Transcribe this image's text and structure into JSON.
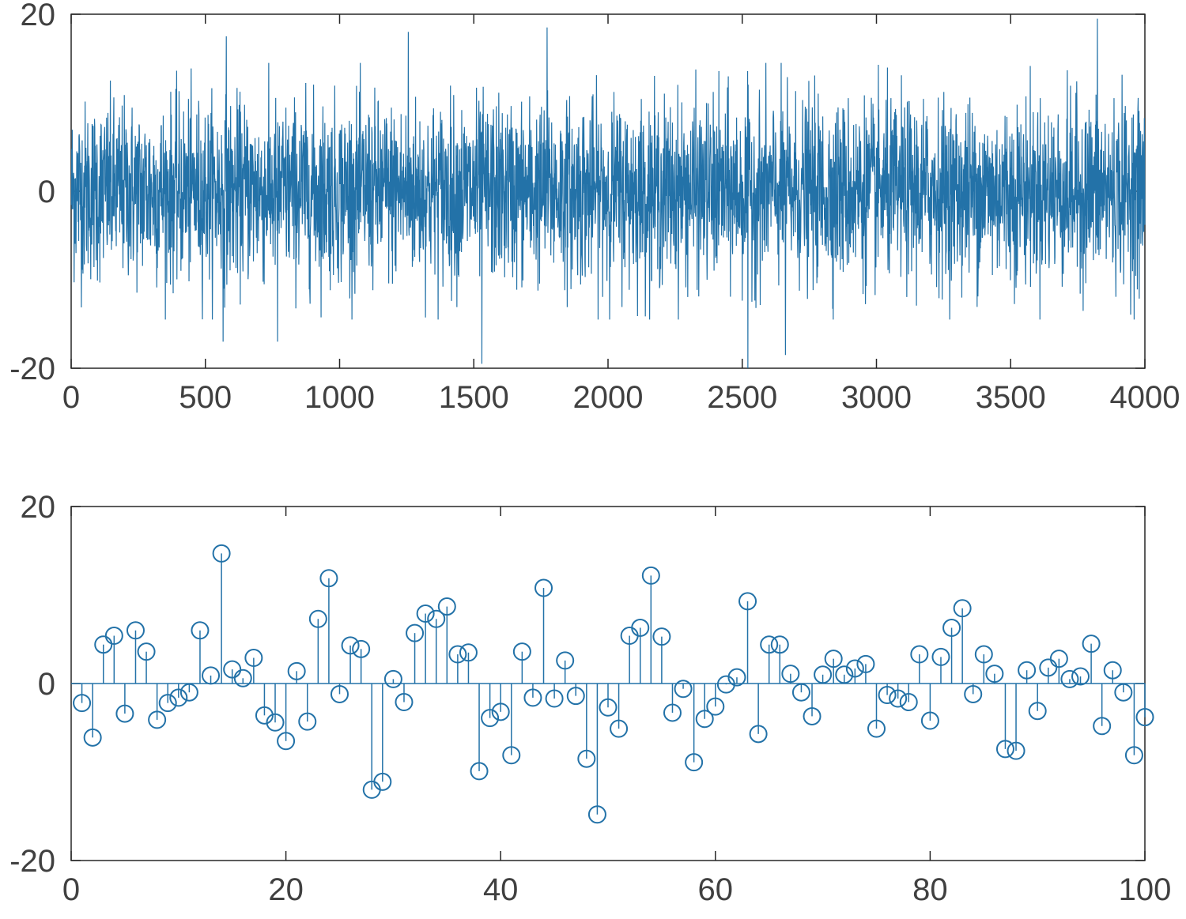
{
  "chart_data": [
    {
      "type": "line",
      "color": "#2372a8",
      "xlim": [
        0,
        4000
      ],
      "ylim": [
        -20,
        20
      ],
      "xticks": [
        0,
        500,
        1000,
        1500,
        2000,
        2500,
        3000,
        3500,
        4000
      ],
      "yticks": [
        -20,
        0,
        20
      ],
      "xtick_labels": [
        "0",
        "500",
        "1000",
        "1500",
        "2000",
        "2500",
        "3000",
        "3500",
        "4000"
      ],
      "ytick_labels": [
        "-20",
        "0",
        "20"
      ],
      "grid": false,
      "series_length": 4000,
      "noise_std": 5,
      "notable_points": [
        {
          "x": 577,
          "y": 17.5
        },
        {
          "x": 1255,
          "y": 18
        },
        {
          "x": 1772,
          "y": 18.5
        },
        {
          "x": 3822,
          "y": 19.5
        },
        {
          "x": 1529,
          "y": -19.5
        },
        {
          "x": 2520,
          "y": -20
        },
        {
          "x": 2660,
          "y": -18.5
        },
        {
          "x": 768,
          "y": -17
        },
        {
          "x": 565,
          "y": -17
        }
      ]
    },
    {
      "type": "stem",
      "color": "#2372a8",
      "xlim": [
        0,
        100
      ],
      "ylim": [
        -20,
        20
      ],
      "xticks": [
        0,
        20,
        40,
        60,
        80,
        100
      ],
      "yticks": [
        -20,
        0,
        20
      ],
      "xtick_labels": [
        "0",
        "20",
        "40",
        "60",
        "80",
        "100"
      ],
      "ytick_labels": [
        "-20",
        "0",
        "20"
      ],
      "grid": false,
      "x": [
        1,
        2,
        3,
        4,
        5,
        6,
        7,
        8,
        9,
        10,
        11,
        12,
        13,
        14,
        15,
        16,
        17,
        18,
        19,
        20,
        21,
        22,
        23,
        24,
        25,
        26,
        27,
        28,
        29,
        30,
        31,
        32,
        33,
        34,
        35,
        36,
        37,
        38,
        39,
        40,
        41,
        42,
        43,
        44,
        45,
        46,
        47,
        48,
        49,
        50,
        51,
        52,
        53,
        54,
        55,
        56,
        57,
        58,
        59,
        60,
        61,
        62,
        63,
        64,
        65,
        66,
        67,
        68,
        69,
        70,
        71,
        72,
        73,
        74,
        75,
        76,
        77,
        78,
        79,
        80,
        81,
        82,
        83,
        84,
        85,
        86,
        87,
        88,
        89,
        90,
        91,
        92,
        93,
        94,
        95,
        96,
        97,
        98,
        99,
        100
      ],
      "values": [
        -2.2,
        -6.1,
        4.4,
        5.4,
        -3.4,
        6.0,
        3.6,
        -4.1,
        -2.2,
        -1.6,
        -1.0,
        6.0,
        0.9,
        14.7,
        1.6,
        0.6,
        2.9,
        -3.6,
        -4.4,
        -6.5,
        1.4,
        -4.3,
        7.3,
        11.9,
        -1.2,
        4.3,
        3.9,
        -12.0,
        -11.1,
        0.5,
        -2.1,
        5.7,
        7.9,
        7.3,
        8.7,
        3.3,
        3.5,
        -9.9,
        -3.9,
        -3.2,
        -8.1,
        3.6,
        -1.6,
        10.8,
        -1.7,
        2.6,
        -1.4,
        -8.5,
        -14.8,
        -2.7,
        -5.1,
        5.4,
        6.3,
        12.2,
        5.3,
        -3.3,
        -0.6,
        -8.9,
        -4.0,
        -2.6,
        -0.1,
        0.7,
        9.3,
        -5.7,
        4.4,
        4.4,
        1.1,
        -1.0,
        -3.7,
        1.0,
        2.8,
        1.0,
        1.7,
        2.2,
        -5.1,
        -1.3,
        -1.7,
        -2.1,
        3.3,
        -4.2,
        3.0,
        6.3,
        8.5,
        -1.2,
        3.3,
        1.1,
        -7.4,
        -7.6,
        1.5,
        -3.1,
        1.8,
        2.8,
        0.5,
        0.8,
        4.5,
        -4.8,
        1.5,
        -1.0,
        -8.1,
        -3.8
      ]
    }
  ]
}
